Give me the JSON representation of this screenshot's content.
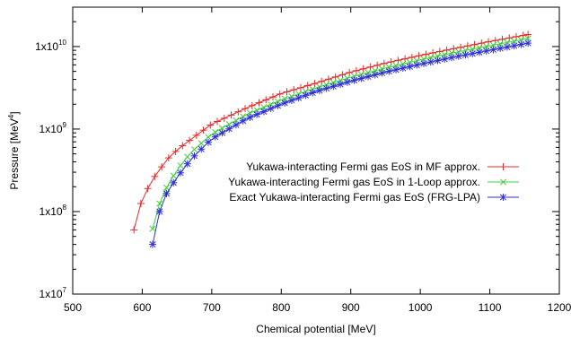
{
  "chart_data": {
    "type": "line",
    "xlabel": "Chemical potential [MeV]",
    "ylabel_base": "Pressure [MeV",
    "ylabel_sup": "4",
    "ylabel_close": "]",
    "xlim": [
      500,
      1200
    ],
    "ylim": [
      10000000,
      30000000000
    ],
    "yscale": "log",
    "x_ticks": [
      500,
      600,
      700,
      800,
      900,
      1000,
      1100,
      1200
    ],
    "x_tick_labels": [
      "500",
      "600",
      "700",
      "800",
      "900",
      "1000",
      "1100",
      "1200"
    ],
    "y_ticks": [
      {
        "value": 10000000,
        "mantissa": "1x10",
        "exp": "7"
      },
      {
        "value": 100000000,
        "mantissa": "1x10",
        "exp": "8"
      },
      {
        "value": 1000000000,
        "mantissa": "1x10",
        "exp": "9"
      },
      {
        "value": 10000000000,
        "mantissa": "1x10",
        "exp": "10"
      }
    ],
    "grid": false,
    "legend_position": "center-right",
    "series": [
      {
        "name": "Yukawa-interacting Fermi gas EoS in MF approx.",
        "color": "#e8282a",
        "marker": "plus",
        "x_start": 588,
        "x_end": 1155,
        "x_step": 10,
        "anchors": [
          [
            588,
            60000000
          ],
          [
            598,
            125000000
          ],
          [
            608,
            190000000
          ],
          [
            620,
            285000000
          ],
          [
            640,
            470000000
          ],
          [
            660,
            650000000
          ],
          [
            700,
            1150000000
          ],
          [
            750,
            1800000000
          ],
          [
            800,
            2700000000
          ],
          [
            850,
            3600000000
          ],
          [
            900,
            4900000000
          ],
          [
            950,
            6300000000
          ],
          [
            1000,
            7800000000
          ],
          [
            1050,
            9500000000
          ],
          [
            1100,
            11500000000
          ],
          [
            1155,
            14000000000
          ]
        ]
      },
      {
        "name": "Yukawa-interacting Fermi gas EoS in 1-Loop approx.",
        "color": "#3cd339",
        "marker": "cross",
        "x_start": 615,
        "x_end": 1155,
        "x_step": 10,
        "anchors": [
          [
            615,
            62000000
          ],
          [
            625,
            125000000
          ],
          [
            635,
            195000000
          ],
          [
            650,
            320000000
          ],
          [
            670,
            520000000
          ],
          [
            700,
            870000000
          ],
          [
            750,
            1500000000
          ],
          [
            800,
            2250000000
          ],
          [
            850,
            3150000000
          ],
          [
            900,
            4250000000
          ],
          [
            950,
            5500000000
          ],
          [
            1000,
            6900000000
          ],
          [
            1050,
            8500000000
          ],
          [
            1100,
            10200000000
          ],
          [
            1155,
            12500000000
          ]
        ]
      },
      {
        "name": "Exact Yukawa-interacting Fermi gas EoS (FRG-LPA)",
        "color": "#2e2edb",
        "marker": "star",
        "x_start": 615,
        "x_end": 1155,
        "x_step": 10,
        "anchors": [
          [
            615,
            40000000
          ],
          [
            625,
            100000000
          ],
          [
            635,
            165000000
          ],
          [
            650,
            260000000
          ],
          [
            670,
            430000000
          ],
          [
            700,
            760000000
          ],
          [
            750,
            1330000000
          ],
          [
            800,
            2000000000
          ],
          [
            850,
            2850000000
          ],
          [
            900,
            3800000000
          ],
          [
            950,
            4900000000
          ],
          [
            1000,
            6100000000
          ],
          [
            1050,
            7500000000
          ],
          [
            1100,
            9000000000
          ],
          [
            1155,
            11000000000
          ]
        ]
      }
    ]
  }
}
